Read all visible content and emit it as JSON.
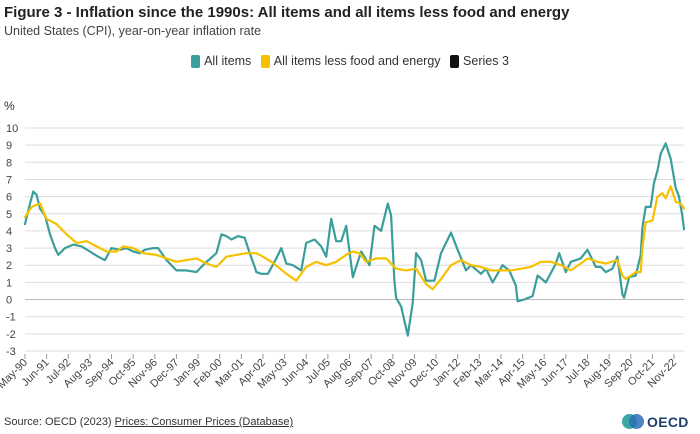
{
  "title": "Figure 3 - Inflation since the 1990s: All items and all items less food and energy",
  "subtitle": "United States (CPI), year-on-year inflation rate",
  "source_prefix": "Source: OECD (2023) ",
  "source_link": "Prices: Consumer Prices (Database)",
  "logo_text": "OECD",
  "colors": {
    "all_items": "#3a9e9a",
    "core": "#f7c100",
    "series3": "#111111",
    "grid": "#dddddd",
    "logo_blue": "#2b6fb6",
    "logo_teal": "#3aa7a3",
    "logo_dark": "#1d3f6e"
  },
  "chart_data": {
    "type": "line",
    "title": "Figure 3 - Inflation since the 1990s: All items and all items less food and energy",
    "subtitle": "United States (CPI), year-on-year inflation rate",
    "ylabel": "%",
    "xlabel": "",
    "ylim": [
      -3,
      10
    ],
    "yticks": [
      -3,
      -2,
      -1,
      0,
      1,
      2,
      3,
      4,
      5,
      6,
      7,
      8,
      9,
      10
    ],
    "grid": true,
    "legend_position": "top-center",
    "x_start": "1990-05",
    "x_end": "2023-05",
    "x_ticks": [
      "May-90",
      "Jun-91",
      "Jul-92",
      "Aug-93",
      "Sep-94",
      "Oct-95",
      "Nov-96",
      "Dec-97",
      "Jan-99",
      "Feb-00",
      "Mar-01",
      "Apr-02",
      "May-03",
      "Jun-04",
      "Jul-05",
      "Aug-06",
      "Sep-07",
      "Oct-08",
      "Nov-09",
      "Dec-10",
      "Jan-12",
      "Feb-13",
      "Mar-14",
      "Apr-15",
      "May-16",
      "Jun-17",
      "Jul-18",
      "Aug-19",
      "Sep-20",
      "Oct-21",
      "Nov-22"
    ],
    "series": [
      {
        "name": "All items",
        "color": "#3a9e9a",
        "points": [
          [
            "1990-05",
            4.4
          ],
          [
            "1990-08",
            5.6
          ],
          [
            "1990-10",
            6.3
          ],
          [
            "1990-12",
            6.1
          ],
          [
            "1991-02",
            5.3
          ],
          [
            "1991-05",
            4.9
          ],
          [
            "1991-08",
            3.8
          ],
          [
            "1991-11",
            3.0
          ],
          [
            "1992-01",
            2.6
          ],
          [
            "1992-05",
            3.0
          ],
          [
            "1992-10",
            3.2
          ],
          [
            "1993-03",
            3.1
          ],
          [
            "1993-08",
            2.8
          ],
          [
            "1994-01",
            2.5
          ],
          [
            "1994-05",
            2.3
          ],
          [
            "1994-09",
            3.0
          ],
          [
            "1995-02",
            2.9
          ],
          [
            "1995-06",
            3.0
          ],
          [
            "1995-10",
            2.8
          ],
          [
            "1996-02",
            2.7
          ],
          [
            "1996-05",
            2.9
          ],
          [
            "1996-10",
            3.0
          ],
          [
            "1997-01",
            3.0
          ],
          [
            "1997-06",
            2.3
          ],
          [
            "1997-12",
            1.7
          ],
          [
            "1998-06",
            1.7
          ],
          [
            "1998-12",
            1.6
          ],
          [
            "1999-05",
            2.1
          ],
          [
            "1999-12",
            2.7
          ],
          [
            "2000-03",
            3.8
          ],
          [
            "2000-06",
            3.7
          ],
          [
            "2000-09",
            3.5
          ],
          [
            "2001-01",
            3.7
          ],
          [
            "2001-05",
            3.6
          ],
          [
            "2001-08",
            2.7
          ],
          [
            "2001-11",
            1.9
          ],
          [
            "2001-12",
            1.6
          ],
          [
            "2002-03",
            1.5
          ],
          [
            "2002-07",
            1.5
          ],
          [
            "2002-12",
            2.4
          ],
          [
            "2003-03",
            3.0
          ],
          [
            "2003-06",
            2.1
          ],
          [
            "2003-10",
            2.0
          ],
          [
            "2004-03",
            1.7
          ],
          [
            "2004-06",
            3.3
          ],
          [
            "2004-11",
            3.5
          ],
          [
            "2005-03",
            3.1
          ],
          [
            "2005-06",
            2.5
          ],
          [
            "2005-09",
            4.7
          ],
          [
            "2005-12",
            3.4
          ],
          [
            "2006-03",
            3.4
          ],
          [
            "2006-06",
            4.3
          ],
          [
            "2006-10",
            1.3
          ],
          [
            "2007-03",
            2.8
          ],
          [
            "2007-08",
            2.0
          ],
          [
            "2007-11",
            4.3
          ],
          [
            "2008-03",
            4.0
          ],
          [
            "2008-07",
            5.6
          ],
          [
            "2008-09",
            4.9
          ],
          [
            "2008-11",
            1.1
          ],
          [
            "2008-12",
            0.1
          ],
          [
            "2009-03",
            -0.4
          ],
          [
            "2009-07",
            -2.1
          ],
          [
            "2009-10",
            -0.2
          ],
          [
            "2009-12",
            2.7
          ],
          [
            "2010-03",
            2.3
          ],
          [
            "2010-06",
            1.1
          ],
          [
            "2010-11",
            1.1
          ],
          [
            "2011-03",
            2.7
          ],
          [
            "2011-09",
            3.9
          ],
          [
            "2012-01",
            2.9
          ],
          [
            "2012-06",
            1.7
          ],
          [
            "2012-09",
            2.0
          ],
          [
            "2013-03",
            1.5
          ],
          [
            "2013-06",
            1.8
          ],
          [
            "2013-10",
            1.0
          ],
          [
            "2014-04",
            2.0
          ],
          [
            "2014-08",
            1.7
          ],
          [
            "2014-12",
            0.8
          ],
          [
            "2015-01",
            -0.1
          ],
          [
            "2015-05",
            0.0
          ],
          [
            "2015-10",
            0.2
          ],
          [
            "2016-01",
            1.4
          ],
          [
            "2016-06",
            1.0
          ],
          [
            "2016-12",
            2.1
          ],
          [
            "2017-02",
            2.7
          ],
          [
            "2017-06",
            1.6
          ],
          [
            "2017-09",
            2.2
          ],
          [
            "2018-03",
            2.4
          ],
          [
            "2018-07",
            2.9
          ],
          [
            "2018-12",
            1.9
          ],
          [
            "2019-03",
            1.9
          ],
          [
            "2019-06",
            1.6
          ],
          [
            "2019-10",
            1.8
          ],
          [
            "2020-01",
            2.5
          ],
          [
            "2020-04",
            0.3
          ],
          [
            "2020-05",
            0.1
          ],
          [
            "2020-08",
            1.3
          ],
          [
            "2020-12",
            1.4
          ],
          [
            "2021-03",
            2.6
          ],
          [
            "2021-04",
            4.2
          ],
          [
            "2021-06",
            5.4
          ],
          [
            "2021-09",
            5.4
          ],
          [
            "2021-11",
            6.8
          ],
          [
            "2022-01",
            7.5
          ],
          [
            "2022-03",
            8.5
          ],
          [
            "2022-06",
            9.1
          ],
          [
            "2022-09",
            8.2
          ],
          [
            "2022-12",
            6.5
          ],
          [
            "2023-02",
            6.0
          ],
          [
            "2023-04",
            4.9
          ],
          [
            "2023-05",
            4.1
          ]
        ]
      },
      {
        "name": "All items less food and energy",
        "color": "#f7c100",
        "points": [
          [
            "1990-05",
            4.8
          ],
          [
            "1990-09",
            5.4
          ],
          [
            "1991-02",
            5.6
          ],
          [
            "1991-06",
            4.7
          ],
          [
            "1991-12",
            4.4
          ],
          [
            "1992-06",
            3.8
          ],
          [
            "1992-12",
            3.3
          ],
          [
            "1993-06",
            3.4
          ],
          [
            "1993-12",
            3.1
          ],
          [
            "1994-06",
            2.8
          ],
          [
            "1994-12",
            2.8
          ],
          [
            "1995-04",
            3.1
          ],
          [
            "1995-10",
            3.0
          ],
          [
            "1996-04",
            2.7
          ],
          [
            "1996-12",
            2.6
          ],
          [
            "1997-06",
            2.4
          ],
          [
            "1997-12",
            2.2
          ],
          [
            "1998-06",
            2.3
          ],
          [
            "1998-12",
            2.4
          ],
          [
            "1999-06",
            2.1
          ],
          [
            "1999-12",
            1.9
          ],
          [
            "2000-06",
            2.5
          ],
          [
            "2000-12",
            2.6
          ],
          [
            "2001-06",
            2.7
          ],
          [
            "2001-12",
            2.7
          ],
          [
            "2002-04",
            2.5
          ],
          [
            "2002-09",
            2.2
          ],
          [
            "2003-01",
            1.9
          ],
          [
            "2003-06",
            1.5
          ],
          [
            "2003-12",
            1.1
          ],
          [
            "2004-06",
            1.9
          ],
          [
            "2004-12",
            2.2
          ],
          [
            "2005-06",
            2.0
          ],
          [
            "2005-12",
            2.2
          ],
          [
            "2006-06",
            2.6
          ],
          [
            "2006-10",
            2.8
          ],
          [
            "2007-02",
            2.7
          ],
          [
            "2007-06",
            2.2
          ],
          [
            "2007-12",
            2.4
          ],
          [
            "2008-06",
            2.4
          ],
          [
            "2008-12",
            1.8
          ],
          [
            "2009-06",
            1.7
          ],
          [
            "2009-12",
            1.8
          ],
          [
            "2010-06",
            0.9
          ],
          [
            "2010-10",
            0.6
          ],
          [
            "2011-03",
            1.2
          ],
          [
            "2011-09",
            2.0
          ],
          [
            "2012-03",
            2.3
          ],
          [
            "2012-09",
            2.0
          ],
          [
            "2013-03",
            1.9
          ],
          [
            "2013-09",
            1.7
          ],
          [
            "2014-03",
            1.7
          ],
          [
            "2014-09",
            1.7
          ],
          [
            "2015-03",
            1.8
          ],
          [
            "2015-09",
            1.9
          ],
          [
            "2016-03",
            2.2
          ],
          [
            "2016-09",
            2.2
          ],
          [
            "2017-03",
            2.0
          ],
          [
            "2017-09",
            1.7
          ],
          [
            "2018-03",
            2.1
          ],
          [
            "2018-07",
            2.4
          ],
          [
            "2019-01",
            2.2
          ],
          [
            "2019-06",
            2.1
          ],
          [
            "2020-01",
            2.3
          ],
          [
            "2020-04",
            1.4
          ],
          [
            "2020-06",
            1.2
          ],
          [
            "2020-12",
            1.6
          ],
          [
            "2021-03",
            1.6
          ],
          [
            "2021-04",
            3.0
          ],
          [
            "2021-06",
            4.5
          ],
          [
            "2021-10",
            4.6
          ],
          [
            "2022-01",
            6.0
          ],
          [
            "2022-04",
            6.2
          ],
          [
            "2022-06",
            5.9
          ],
          [
            "2022-09",
            6.6
          ],
          [
            "2022-12",
            5.7
          ],
          [
            "2023-03",
            5.6
          ],
          [
            "2023-05",
            5.3
          ]
        ]
      },
      {
        "name": "Series 3",
        "color": "#111111",
        "points": []
      }
    ]
  }
}
